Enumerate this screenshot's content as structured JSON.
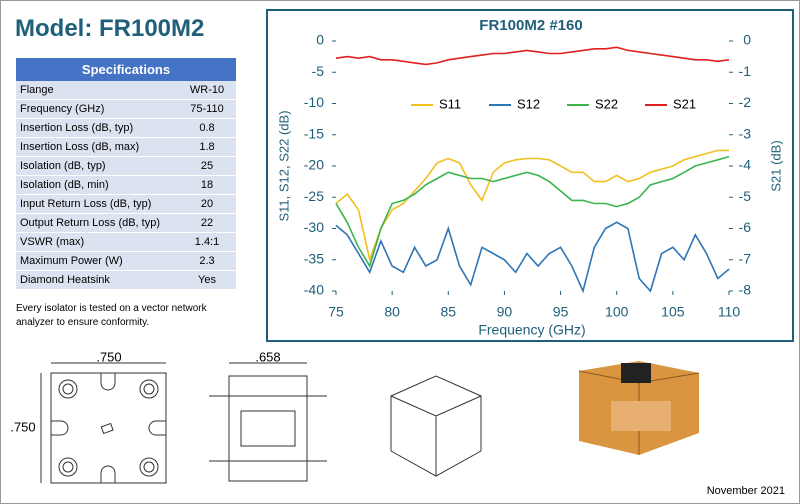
{
  "title": "Model: FR100M2",
  "specs": {
    "header": "Specifications",
    "rows": [
      [
        "Flange",
        "WR-10"
      ],
      [
        "Frequency (GHz)",
        "75-110"
      ],
      [
        "Insertion Loss (dB, typ)",
        "0.8"
      ],
      [
        "Insertion Loss (dB, max)",
        "1.8"
      ],
      [
        "Isolation (dB, typ)",
        "25"
      ],
      [
        "Isolation (dB, min)",
        "18"
      ],
      [
        "Input Return Loss (dB, typ)",
        "20"
      ],
      [
        "Output Return Loss (dB, typ)",
        "22"
      ],
      [
        "VSWR (max)",
        "1.4:1"
      ],
      [
        "Maximum Power (W)",
        "2.3"
      ],
      [
        "Diamond Heatsink",
        "Yes"
      ]
    ]
  },
  "note": "Every isolator is tested on a vector network analyzer to ensure conformity.",
  "chart_data": {
    "type": "line",
    "title": "FR100M2 #160",
    "x_label": "Frequency (GHz)",
    "y_label": "S11, S12, S22 (dB)",
    "y2_label": "S21 (dB)",
    "x": [
      75,
      76,
      77,
      78,
      79,
      80,
      81,
      82,
      83,
      84,
      85,
      86,
      87,
      88,
      89,
      90,
      91,
      92,
      93,
      94,
      95,
      96,
      97,
      98,
      99,
      100,
      101,
      102,
      103,
      104,
      105,
      106,
      107,
      108,
      109,
      110
    ],
    "xlim": [
      75,
      110
    ],
    "xticks": [
      75,
      80,
      85,
      90,
      95,
      100,
      105,
      110
    ],
    "ylim": [
      -40,
      0
    ],
    "yticks": [
      0,
      -5,
      -10,
      -15,
      -20,
      -25,
      -30,
      -35,
      -40
    ],
    "y2lim": [
      -8,
      0
    ],
    "y2ticks": [
      0,
      -1,
      -2,
      -3,
      -4,
      -5,
      -6,
      -7,
      -8
    ],
    "series": [
      {
        "name": "S11",
        "color": "#f0c020",
        "values": [
          -26,
          -24.5,
          -27,
          -35,
          -30,
          -27,
          -26,
          -24,
          -22,
          -19.5,
          -18.8,
          -19.5,
          -23,
          -25.5,
          -21,
          -19.5,
          -19,
          -18.8,
          -18.8,
          -19,
          -20,
          -21,
          -21,
          -22.5,
          -22.5,
          -21.5,
          -22.5,
          -22,
          -21,
          -20.5,
          -20,
          -19,
          -18.5,
          -18,
          -17.5,
          -17.5
        ]
      },
      {
        "name": "S12",
        "color": "#2e75b6",
        "values": [
          -29.5,
          -31,
          -34,
          -37,
          -32,
          -36,
          -37,
          -33,
          -36,
          -35,
          -30,
          -36,
          -39,
          -33,
          -34,
          -35,
          -37,
          -34,
          -36,
          -34,
          -33,
          -36,
          -40,
          -33,
          -30,
          -29,
          -30,
          -38,
          -40,
          -34,
          -33,
          -35,
          -31,
          -34,
          -38,
          -36.5
        ]
      },
      {
        "name": "S22",
        "color": "#3cb44b",
        "values": [
          -26,
          -29,
          -33,
          -36,
          -30,
          -26,
          -25.5,
          -24.5,
          -23,
          -22,
          -21,
          -21.5,
          -22,
          -22,
          -22.5,
          -22,
          -21.5,
          -21,
          -21.5,
          -22.5,
          -24,
          -25.5,
          -25.5,
          -26,
          -26,
          -26.5,
          -26,
          -25,
          -23,
          -22.5,
          -22,
          -21,
          -20,
          -19.5,
          -19,
          -18.5
        ]
      },
      {
        "name": "S21",
        "color": "#e02020",
        "axis": "y2",
        "values": [
          -0.55,
          -0.5,
          -0.55,
          -0.5,
          -0.6,
          -0.6,
          -0.65,
          -0.7,
          -0.75,
          -0.7,
          -0.6,
          -0.55,
          -0.5,
          -0.45,
          -0.4,
          -0.4,
          -0.35,
          -0.3,
          -0.35,
          -0.4,
          -0.4,
          -0.35,
          -0.3,
          -0.25,
          -0.25,
          -0.2,
          -0.3,
          -0.35,
          -0.4,
          -0.45,
          -0.5,
          -0.55,
          -0.6,
          -0.6,
          -0.65,
          -0.6
        ]
      }
    ]
  },
  "drawings": {
    "dims": [
      ".750",
      ".750",
      ".658"
    ]
  },
  "footer": "November 2021"
}
